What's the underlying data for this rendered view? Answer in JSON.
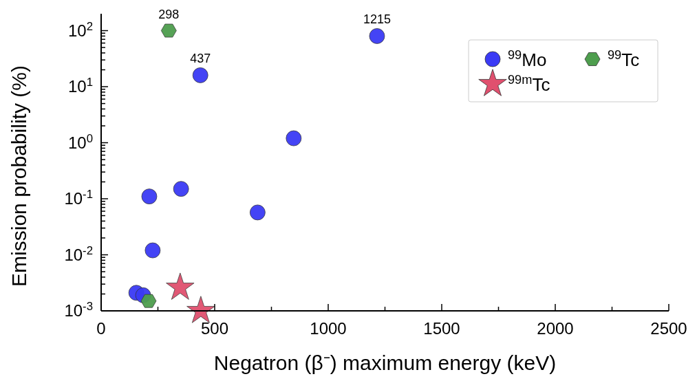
{
  "chart_data": {
    "type": "scatter",
    "xlabel": "Negatron (β⁻) maximum energy (keV)",
    "ylabel": "Emission probability (%)",
    "log": "y",
    "grid": false,
    "legend": "top right",
    "xlim": [
      0,
      2500
    ],
    "xticks": [
      0,
      {
        "value": 250,
        "label": null
      },
      500,
      {
        "value": 750,
        "label": null
      },
      1000,
      {
        "value": 1250,
        "label": null
      },
      1500,
      {
        "value": 1750,
        "label": null
      },
      2000,
      {
        "value": 2250,
        "label": null
      },
      2500
    ],
    "ylim": [
      0.001,
      200
    ],
    "yticks": [
      {
        "value": 0.001,
        "label": "10$^{-3}$"
      },
      {
        "value": 0.002,
        "label": null
      },
      {
        "value": 0.003,
        "label": null
      },
      {
        "value": 0.004,
        "label": null
      },
      {
        "value": 0.005,
        "label": null
      },
      {
        "value": 0.006,
        "label": null
      },
      {
        "value": 0.007,
        "label": null
      },
      {
        "value": 0.008,
        "label": null
      },
      {
        "value": 0.009,
        "label": null
      },
      {
        "value": 0.01,
        "label": "10$^{-2}$"
      },
      {
        "value": 0.02,
        "label": null
      },
      {
        "value": 0.03,
        "label": null
      },
      {
        "value": 0.04,
        "label": null
      },
      {
        "value": 0.05,
        "label": null
      },
      {
        "value": 0.06,
        "label": null
      },
      {
        "value": 0.07,
        "label": null
      },
      {
        "value": 0.08,
        "label": null
      },
      {
        "value": 0.09,
        "label": null
      },
      {
        "value": 0.1,
        "label": "10$^{-1}$"
      },
      {
        "value": 0.2,
        "label": null
      },
      {
        "value": 0.3,
        "label": null
      },
      {
        "value": 0.4,
        "label": null
      },
      {
        "value": 0.5,
        "label": null
      },
      {
        "value": 0.6,
        "label": null
      },
      {
        "value": 0.7,
        "label": null
      },
      {
        "value": 0.8,
        "label": null
      },
      {
        "value": 0.9,
        "label": null
      },
      {
        "value": 1,
        "label": "10$^{0}$"
      },
      {
        "value": 2,
        "label": null
      },
      {
        "value": 3,
        "label": null
      },
      {
        "value": 4,
        "label": null
      },
      {
        "value": 5,
        "label": null
      },
      {
        "value": 6,
        "label": null
      },
      {
        "value": 7,
        "label": null
      },
      {
        "value": 8,
        "label": null
      },
      {
        "value": 9,
        "label": null
      },
      {
        "value": 10,
        "label": "10$^{1}$"
      },
      {
        "value": 20,
        "label": null
      },
      {
        "value": 30,
        "label": null
      },
      {
        "value": 40,
        "label": null
      },
      {
        "value": 50,
        "label": null
      },
      {
        "value": 60,
        "label": null
      },
      {
        "value": 70,
        "label": null
      },
      {
        "value": 80,
        "label": null
      },
      {
        "value": 90,
        "label": null
      },
      {
        "value": 100,
        "label": "10$^{2}$"
      }
    ],
    "series": [
      {
        "name": "$^{99}$Mo",
        "color": "#3a3af5",
        "marker": "circle",
        "x": [
          1215,
          437,
          848,
          689,
          352,
          212,
          227,
          155,
          185
        ],
        "values": [
          80,
          16,
          1.2,
          0.057,
          0.15,
          0.11,
          0.012,
          0.0021,
          0.0019
        ]
      },
      {
        "name": "$^{99}$Tc",
        "color": "#4e9e4e",
        "x": [
          298,
          209
        ],
        "values": [
          100,
          0.0015
        ]
      },
      {
        "name": "$^{99m}$Tc",
        "color": "#e0506e",
        "marker": "star",
        "x": [
          348,
          439
        ],
        "values": [
          0.0026,
          0.001
        ]
      }
    ],
    "annotations": [
      {
        "text": "298",
        "x": 298,
        "y": 100
      },
      {
        "text": "437",
        "x": 437,
        "y": 16
      },
      {
        "text": "1215",
        "x": 1215,
        "y": 80
      }
    ]
  }
}
